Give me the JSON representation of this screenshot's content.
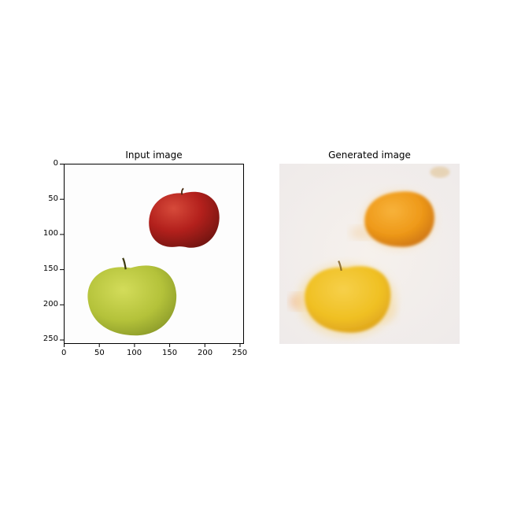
{
  "panels": [
    {
      "title": "Input image",
      "x_ticks": [
        "0",
        "50",
        "100",
        "150",
        "200",
        "250"
      ],
      "y_ticks": [
        "0",
        "50",
        "100",
        "150",
        "200",
        "250"
      ]
    },
    {
      "title": "Generated image"
    }
  ],
  "colors": {
    "red_apple": "#b3201c",
    "green_apple": "#b4c23a",
    "orange_fruit": "#ef9a1a",
    "yellow_fruit": "#f0c023"
  }
}
